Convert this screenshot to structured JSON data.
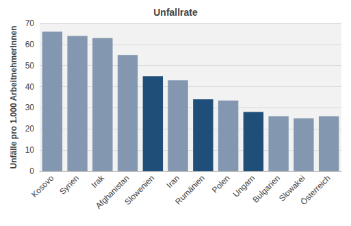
{
  "chart_data": {
    "type": "bar",
    "title": "Unfallrate",
    "y_label": "Unfälle pro 1.000 ArbeitnehmerInnen",
    "categories": [
      "Kosovo",
      "Syrien",
      "Irak",
      "Afghanistan",
      "Slowenien",
      "Iran",
      "Rumänien",
      "Polen",
      "Ungarn",
      "Bulgarien",
      "Slowakei",
      "Österreich"
    ],
    "values": [
      66,
      64,
      63,
      55,
      45,
      43,
      34,
      33.5,
      28,
      26,
      25,
      26
    ],
    "colors": [
      "#8497b0",
      "#8497b0",
      "#8497b0",
      "#8497b0",
      "#1f4e79",
      "#8497b0",
      "#1f4e79",
      "#8497b0",
      "#1f4e79",
      "#8497b0",
      "#8497b0",
      "#8497b0"
    ],
    "ylim": [
      0,
      70
    ],
    "yticks": [
      0,
      10,
      20,
      30,
      40,
      50,
      60,
      70
    ],
    "grid": true
  }
}
